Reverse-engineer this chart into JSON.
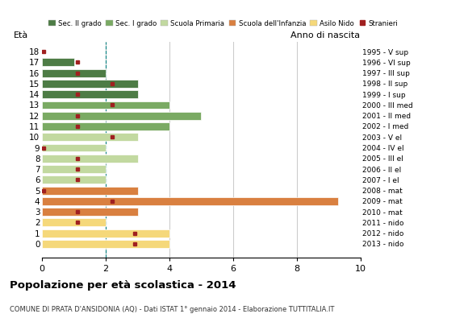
{
  "ages": [
    18,
    17,
    16,
    15,
    14,
    13,
    12,
    11,
    10,
    9,
    8,
    7,
    6,
    5,
    4,
    3,
    2,
    1,
    0
  ],
  "years": [
    "1995 - V sup",
    "1996 - VI sup",
    "1997 - III sup",
    "1998 - II sup",
    "1999 - I sup",
    "2000 - III med",
    "2001 - II med",
    "2002 - I med",
    "2003 - V el",
    "2004 - IV el",
    "2005 - III el",
    "2006 - II el",
    "2007 - I el",
    "2008 - mat",
    "2009 - mat",
    "2010 - mat",
    "2011 - nido",
    "2012 - nido",
    "2013 - nido"
  ],
  "bar_values": [
    0,
    1,
    2,
    3,
    3,
    4,
    5,
    4,
    3,
    2,
    3,
    2,
    2,
    3,
    9.3,
    3,
    2,
    4,
    4
  ],
  "stranieri_pos": [
    0.05,
    1.1,
    1.1,
    2.2,
    1.1,
    2.2,
    1.1,
    1.1,
    2.2,
    0.05,
    1.1,
    1.1,
    1.1,
    0.05,
    2.2,
    1.1,
    1.1,
    2.9,
    2.9
  ],
  "stranieri_show": [
    1,
    1,
    1,
    1,
    1,
    1,
    1,
    1,
    1,
    1,
    1,
    1,
    1,
    1,
    1,
    1,
    1,
    1,
    1
  ],
  "categories": {
    "sec2": {
      "ages": [
        18,
        17,
        16,
        15,
        14
      ],
      "color": "#4d7c45"
    },
    "sec1": {
      "ages": [
        13,
        12,
        11
      ],
      "color": "#7aaa63"
    },
    "primaria": {
      "ages": [
        10,
        9,
        8,
        7,
        6
      ],
      "color": "#c2d9a0"
    },
    "infanzia": {
      "ages": [
        5,
        4,
        3
      ],
      "color": "#d98040"
    },
    "nido": {
      "ages": [
        2,
        1,
        0
      ],
      "color": "#f5d87a"
    }
  },
  "legend_labels": [
    "Sec. II grado",
    "Sec. I grado",
    "Scuola Primaria",
    "Scuola dell'Infanzia",
    "Asilo Nido",
    "Stranieri"
  ],
  "legend_colors": [
    "#4d7c45",
    "#7aaa63",
    "#c2d9a0",
    "#d98040",
    "#f5d87a",
    "#a02020"
  ],
  "title": "Popolazione per età scolastica - 2014",
  "subtitle": "COMUNE DI PRATA D'ANSIDONIA (AQ) - Dati ISTAT 1° gennaio 2014 - Elaborazione TUTTITALIA.IT",
  "label_eta": "Età",
  "label_anno": "Anno di nascita",
  "xlim": [
    0,
    10
  ],
  "xticks": [
    0,
    2,
    4,
    6,
    8,
    10
  ],
  "dashed_line_x": 2,
  "bg_color": "#ffffff",
  "grid_color": "#cccccc",
  "stranieri_color": "#a02020",
  "bar_height": 0.75
}
